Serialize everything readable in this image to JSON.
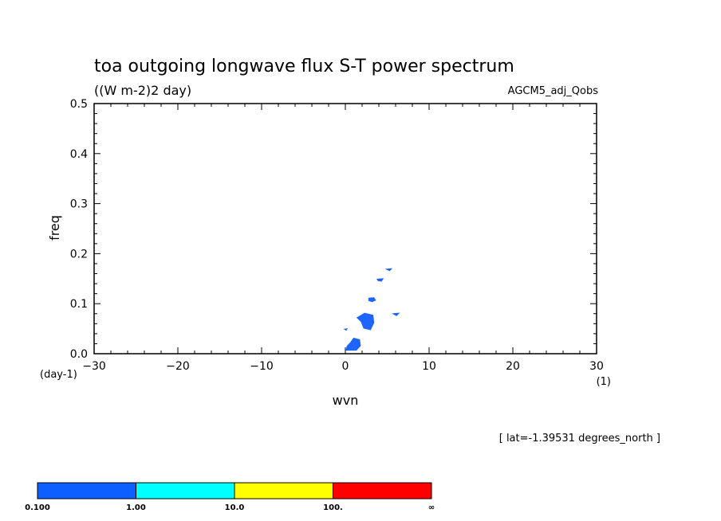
{
  "chart_data": {
    "type": "contour",
    "title": "toa outgoing longwave flux S-T power spectrum",
    "units": "((W m-2)2 day)",
    "model": "AGCM5_adj_Qobs",
    "xlabel": "wvn",
    "ylabel": "freq",
    "x_unit": "(1)",
    "y_unit": "(day-1)",
    "xlim": [
      -30,
      30
    ],
    "ylim": [
      0,
      0.5
    ],
    "x_ticks": [
      "-30",
      "-20",
      "-10",
      "0",
      "10",
      "20",
      "30"
    ],
    "y_ticks": [
      "0.0",
      "0.1",
      "0.2",
      "0.3",
      "0.4",
      "0.5"
    ],
    "footnote": "[ lat=-1.39531 degrees_north ]",
    "colorbar": {
      "labels": [
        "0.100",
        "1.00",
        "10.0",
        "100.",
        "∞"
      ],
      "colors": [
        "#0e5fff",
        "#00ffff",
        "#ffff00",
        "#ff0000"
      ]
    },
    "regions": [
      {
        "level": "0.100-1.00",
        "color": "#1e64ff",
        "points": [
          [
            0.1,
            0.007
          ],
          [
            1.3,
            0.007
          ],
          [
            1.8,
            0.016
          ],
          [
            1.7,
            0.028
          ],
          [
            1.0,
            0.031
          ],
          [
            0.6,
            0.022
          ],
          [
            0.2,
            0.015
          ]
        ]
      },
      {
        "level": "0.100-1.00",
        "color": "#1e64ff",
        "points": [
          [
            1.4,
            0.072
          ],
          [
            2.3,
            0.081
          ],
          [
            3.3,
            0.077
          ],
          [
            3.4,
            0.062
          ],
          [
            3.0,
            0.048
          ],
          [
            2.2,
            0.051
          ],
          [
            1.9,
            0.064
          ]
        ]
      },
      {
        "level": "0.100-1.00",
        "color": "#1e64ff",
        "points": [
          [
            2.8,
            0.111
          ],
          [
            3.4,
            0.112
          ],
          [
            3.6,
            0.107
          ],
          [
            3.2,
            0.104
          ],
          [
            2.8,
            0.106
          ]
        ]
      },
      {
        "level": "0.100-1.00",
        "color": "#1e64ff",
        "points": [
          [
            3.8,
            0.149
          ],
          [
            4.5,
            0.15
          ],
          [
            4.3,
            0.145
          ],
          [
            3.9,
            0.146
          ]
        ]
      },
      {
        "level": "0.100-1.00",
        "color": "#1e64ff",
        "points": [
          [
            4.9,
            0.169
          ],
          [
            5.5,
            0.17
          ],
          [
            5.3,
            0.166
          ]
        ]
      },
      {
        "level": "0.100-1.00",
        "color": "#1e64ff",
        "points": [
          [
            5.7,
            0.08
          ],
          [
            6.4,
            0.081
          ],
          [
            6.1,
            0.076
          ]
        ]
      },
      {
        "level": "0.100-1.00",
        "color": "#1e64ff",
        "points": [
          [
            -0.1,
            0.049
          ],
          [
            0.2,
            0.05
          ],
          [
            0.1,
            0.047
          ]
        ]
      }
    ]
  }
}
